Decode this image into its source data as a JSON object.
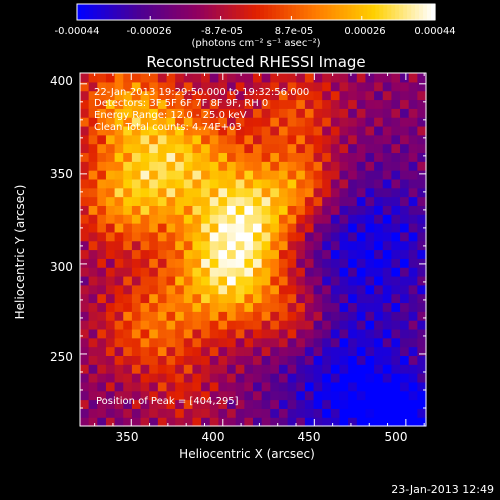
{
  "chart_data": {
    "type": "heatmap",
    "title": "Reconstructed RHESSI Image",
    "xlabel": "Heliocentric X (arcsec)",
    "ylabel": "Heliocentric Y (arcsec)",
    "xlim": [
      322,
      511
    ],
    "ylim": [
      210,
      406
    ],
    "xticks": [
      350,
      400,
      450,
      500
    ],
    "yticks": [
      250,
      300,
      350,
      400
    ],
    "colorbar": {
      "ticks": [
        "-0.00044",
        "-0.00026",
        "-8.7e-05",
        "8.7e-05",
        "0.00026",
        "0.00044"
      ],
      "tick_values": [
        -0.00044,
        -0.00026,
        -8.7e-05,
        8.7e-05,
        0.00026,
        0.00044
      ],
      "range": [
        -0.00044,
        0.00044
      ],
      "units": "(photons cm⁻² s⁻¹ asec⁻²)",
      "colormap": [
        "#0000ff",
        "#4a0096",
        "#900060",
        "#e02000",
        "#ff7a00",
        "#ffd000",
        "#ffffff"
      ]
    },
    "annotations": {
      "time_range": "22-Jan-2013 19:29:50.000 to 19:32:56.000",
      "detectors": "Detectors: 3F 5F 6F 7F 8F 9F, RH 0",
      "energy": "Energy Range: 12.0 - 25.0 keV",
      "clean": "Clean    Total counts: 4.74E+03",
      "peak": "Position of Peak = [404,295]"
    },
    "peak": [
      404,
      295
    ],
    "sources": [
      {
        "x": 404,
        "y": 295,
        "amp": 1.0,
        "sigma": 22
      },
      {
        "x": 415,
        "y": 330,
        "amp": 0.8,
        "sigma": 20
      },
      {
        "x": 375,
        "y": 360,
        "amp": 0.8,
        "sigma": 24
      },
      {
        "x": 345,
        "y": 390,
        "amp": 0.6,
        "sigma": 18
      },
      {
        "x": 345,
        "y": 335,
        "amp": 0.6,
        "sigma": 20
      },
      {
        "x": 360,
        "y": 265,
        "amp": 0.55,
        "sigma": 20
      },
      {
        "x": 440,
        "y": 385,
        "amp": 0.45,
        "sigma": 18
      },
      {
        "x": 445,
        "y": 345,
        "amp": 0.5,
        "sigma": 15
      },
      {
        "x": 440,
        "y": 270,
        "amp": 0.35,
        "sigma": 14
      },
      {
        "x": 380,
        "y": 225,
        "amp": 0.25,
        "sigma": 14
      }
    ],
    "negative_regions": [
      {
        "x": 480,
        "y": 310,
        "amp": -0.5,
        "sigma": 30
      },
      {
        "x": 470,
        "y": 230,
        "amp": -0.55,
        "sigma": 28
      },
      {
        "x": 500,
        "y": 215,
        "amp": -0.5,
        "sigma": 15
      }
    ],
    "grid": false
  },
  "timestamp": "23-Jan-2013 12:49"
}
